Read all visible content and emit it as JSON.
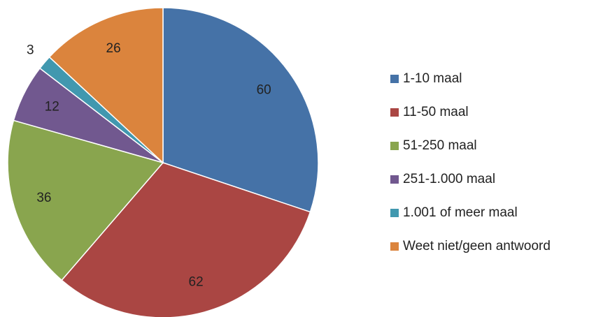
{
  "chart_data": {
    "type": "pie",
    "categories": [
      "1-10 maal",
      "11-50 maal",
      "51-250 maal",
      "251-1.000 maal",
      "1.001 of meer maal",
      "Weet niet/geen antwoord"
    ],
    "values": [
      60,
      62,
      36,
      12,
      3,
      26
    ],
    "colors": [
      "#4572a7",
      "#aa4643",
      "#89a54e",
      "#71588f",
      "#4198af",
      "#db843d"
    ],
    "legend": "right"
  }
}
